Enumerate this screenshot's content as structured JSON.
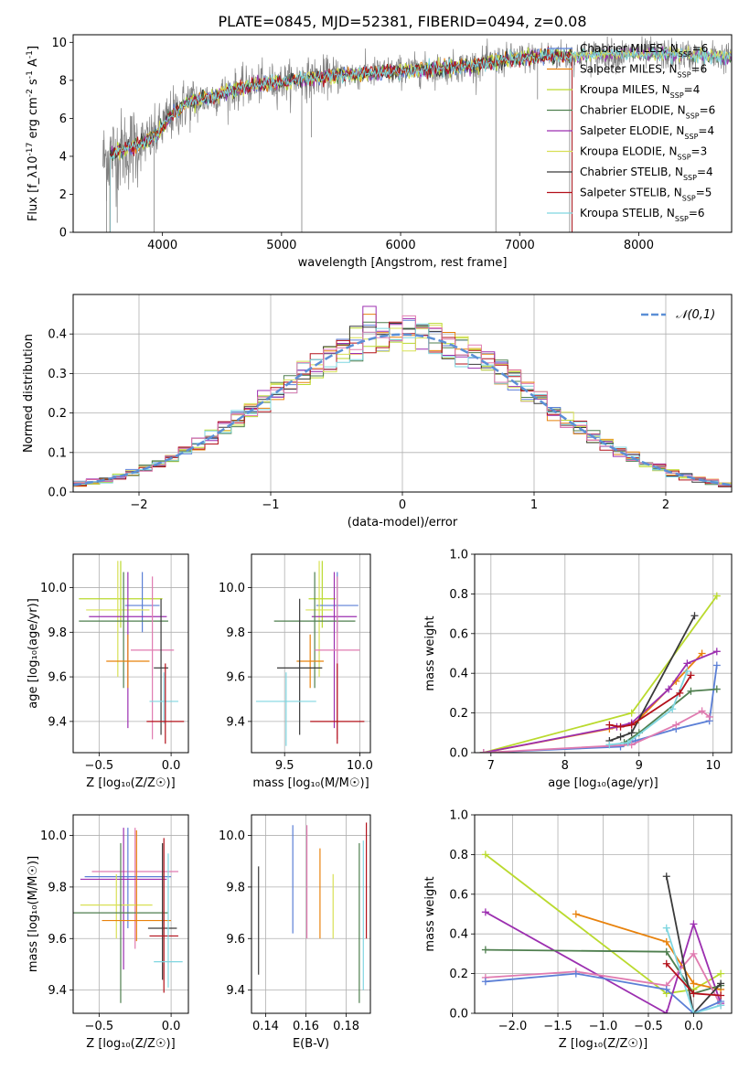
{
  "figure_title": "PLATE=0845, MJD=52381, FIBERID=0494, z=0.08",
  "colors": {
    "chab_miles": "#5b7fd6",
    "salp_miles": "#e8820c",
    "krou_miles": "#bada2e",
    "chab_elodie": "#4f7f4f",
    "salp_elodie": "#9c2fb0",
    "krou_elodie": "#d8e055",
    "chab_stelib": "#3a3a3a",
    "salp_stelib": "#b3101a",
    "krou_stelib": "#7fd6e0",
    "pink": "#e07bb0",
    "spectrum_grey": "#808080",
    "normal_curve": "#5b8fd6"
  },
  "chart_data": [
    {
      "id": "spectrum",
      "type": "line",
      "xlabel": "wavelength [Angstrom, rest frame]",
      "ylabel": "Flux [f_λ10^-17 erg cm^-2 s^-1 A^-1]",
      "xlim": [
        3250,
        8780
      ],
      "ylim": [
        0,
        10.4
      ],
      "xticks": [
        4000,
        5000,
        6000,
        7000,
        8000
      ],
      "yticks": [
        0,
        2,
        4,
        6,
        8,
        10
      ],
      "grid": false,
      "legend_position": "right",
      "legend": [
        {
          "label": "Chabrier MILES, N",
          "sub": "SSP",
          "value": "=6",
          "color_key": "chab_miles"
        },
        {
          "label": "Salpeter MILES, N",
          "sub": "SSP",
          "value": "=6",
          "color_key": "salp_miles"
        },
        {
          "label": "Kroupa MILES, N",
          "sub": "SSP",
          "value": "=4",
          "color_key": "krou_miles"
        },
        {
          "label": "Chabrier ELODIE, N",
          "sub": "SSP",
          "value": "=6",
          "color_key": "chab_elodie"
        },
        {
          "label": "Salpeter ELODIE, N",
          "sub": "SSP",
          "value": "=4",
          "color_key": "salp_elodie"
        },
        {
          "label": "Kroupa ELODIE, N",
          "sub": "SSP",
          "value": "=3",
          "color_key": "krou_elodie"
        },
        {
          "label": "Chabrier STELIB, N",
          "sub": "SSP",
          "value": "=4",
          "color_key": "chab_stelib"
        },
        {
          "label": "Salpeter STELIB, N",
          "sub": "SSP",
          "value": "=5",
          "color_key": "salp_stelib"
        },
        {
          "label": "Kroupa STELIB, N",
          "sub": "SSP",
          "value": "=6",
          "color_key": "krou_stelib"
        }
      ],
      "continuum": [
        [
          3500,
          3.8
        ],
        [
          3600,
          4.2
        ],
        [
          3800,
          4.6
        ],
        [
          3950,
          5.1
        ],
        [
          4050,
          6.0
        ],
        [
          4200,
          6.8
        ],
        [
          4400,
          7.1
        ],
        [
          4600,
          7.5
        ],
        [
          4800,
          7.8
        ],
        [
          5000,
          7.9
        ],
        [
          5200,
          8.1
        ],
        [
          5500,
          8.3
        ],
        [
          5800,
          8.4
        ],
        [
          6000,
          8.5
        ],
        [
          6300,
          8.6
        ],
        [
          6600,
          8.8
        ],
        [
          6900,
          9.1
        ],
        [
          7200,
          9.3
        ],
        [
          7500,
          9.3
        ],
        [
          8000,
          9.4
        ],
        [
          8500,
          9.3
        ],
        [
          8780,
          9.2
        ]
      ],
      "model_start": 3560,
      "models_end": [
        7440,
        7440,
        7440,
        8780,
        8780,
        8780,
        7440,
        7440,
        8780
      ],
      "spikes_down": [
        [
          3530,
          0
        ],
        [
          3560,
          0
        ],
        [
          3620,
          0.5
        ],
        [
          3700,
          3.0
        ],
        [
          3930,
          0
        ],
        [
          5170,
          0
        ],
        [
          5250,
          5.0
        ],
        [
          6800,
          0
        ],
        [
          7150,
          7.0
        ],
        [
          7420,
          0
        ]
      ]
    },
    {
      "id": "residual-histogram",
      "type": "line",
      "xlabel": "(data-model)/error",
      "ylabel": "Normed distribution",
      "xlim": [
        -2.5,
        2.5
      ],
      "ylim": [
        0,
        0.5
      ],
      "xticks": [
        -2,
        -1,
        0,
        1,
        2
      ],
      "yticks": [
        0.0,
        0.1,
        0.2,
        0.3,
        0.4
      ],
      "grid": true,
      "legend_position": "top-right",
      "legend": [
        {
          "label": "𝒩(0,1)",
          "color_key": "normal_curve"
        }
      ],
      "bin_width": 0.1,
      "reference_peak": 0.4,
      "reference_peaks": {
        "chab_elodie": 0.43,
        "salp_elodie": 0.47,
        "salp_miles": 0.45
      }
    },
    {
      "id": "age-vs-z",
      "type": "scatter",
      "xlabel": "Z [log₁₀(Z/Z☉)]",
      "ylabel": "age  [log₁₀(age/yr)]",
      "xlim": [
        -0.68,
        0.12
      ],
      "ylim": [
        9.26,
        10.15
      ],
      "xticks": [
        -0.5,
        0.0
      ],
      "yticks": [
        9.4,
        9.6,
        9.8,
        10.0
      ],
      "grid": true,
      "errorbars": [
        {
          "color_key": "krou_miles",
          "x": -0.35,
          "y": 9.95,
          "xerr": 0.29,
          "yerr": [
            0.13,
            0.17
          ]
        },
        {
          "color_key": "chab_miles",
          "x": -0.2,
          "y": 9.92,
          "xerr": 0.12,
          "yerr": [
            0.12,
            0.15
          ]
        },
        {
          "color_key": "krou_elodie",
          "x": -0.37,
          "y": 9.9,
          "xerr": 0.22,
          "yerr": [
            0.3,
            0.22
          ]
        },
        {
          "color_key": "salp_elodie",
          "x": -0.3,
          "y": 9.87,
          "xerr": 0.27,
          "yerr": [
            0.5,
            0.2
          ]
        },
        {
          "color_key": "chab_elodie",
          "x": -0.33,
          "y": 9.85,
          "xerr": 0.31,
          "yerr": [
            0.3,
            0.22
          ]
        },
        {
          "color_key": "pink",
          "x": -0.13,
          "y": 9.72,
          "xerr": 0.15,
          "yerr": [
            0.4,
            0.33
          ]
        },
        {
          "color_key": "salp_miles",
          "x": -0.3,
          "y": 9.67,
          "xerr": 0.15,
          "yerr": [
            0.12,
            0.12
          ]
        },
        {
          "color_key": "chab_stelib",
          "x": -0.07,
          "y": 9.64,
          "xerr": 0.05,
          "yerr": [
            0.3,
            0.31
          ]
        },
        {
          "color_key": "krou_stelib",
          "x": -0.05,
          "y": 9.49,
          "xerr": 0.1,
          "yerr": [
            0.1,
            0.13
          ]
        },
        {
          "color_key": "salp_stelib",
          "x": -0.04,
          "y": 9.4,
          "xerr": 0.13,
          "yerr": [
            0.1,
            0.26
          ]
        }
      ]
    },
    {
      "id": "age-vs-mass",
      "type": "scatter",
      "xlabel": "mass [log₁₀(M/M☉)]",
      "ylabel": "",
      "xlim": [
        9.28,
        10.07
      ],
      "ylim": [
        9.26,
        10.15
      ],
      "xticks": [
        9.5,
        10.0
      ],
      "yticks": [
        9.4,
        9.6,
        9.8,
        10.0
      ],
      "grid": true,
      "errorbars": [
        {
          "color_key": "krou_miles",
          "x": 9.75,
          "y": 9.95,
          "xerr": 0.09,
          "yerr": [
            0.13,
            0.17
          ]
        },
        {
          "color_key": "chab_miles",
          "x": 9.85,
          "y": 9.92,
          "xerr": 0.14,
          "yerr": [
            0.12,
            0.15
          ]
        },
        {
          "color_key": "krou_elodie",
          "x": 9.73,
          "y": 9.9,
          "xerr": 0.09,
          "yerr": [
            0.3,
            0.22
          ]
        },
        {
          "color_key": "salp_elodie",
          "x": 9.83,
          "y": 9.87,
          "xerr": 0.15,
          "yerr": [
            0.5,
            0.2
          ]
        },
        {
          "color_key": "chab_elodie",
          "x": 9.7,
          "y": 9.85,
          "xerr": 0.27,
          "yerr": [
            0.3,
            0.22
          ]
        },
        {
          "color_key": "pink",
          "x": 9.85,
          "y": 9.72,
          "xerr": 0.15,
          "yerr": [
            0.4,
            0.33
          ]
        },
        {
          "color_key": "salp_miles",
          "x": 9.67,
          "y": 9.67,
          "xerr": 0.09,
          "yerr": [
            0.12,
            0.12
          ]
        },
        {
          "color_key": "chab_stelib",
          "x": 9.6,
          "y": 9.64,
          "xerr": 0.15,
          "yerr": [
            0.3,
            0.31
          ]
        },
        {
          "color_key": "krou_stelib",
          "x": 9.51,
          "y": 9.49,
          "xerr": 0.2,
          "yerr": [
            0.2,
            0.13
          ]
        },
        {
          "color_key": "salp_stelib",
          "x": 9.85,
          "y": 9.4,
          "xerr": 0.18,
          "yerr": [
            0.1,
            0.26
          ]
        }
      ]
    },
    {
      "id": "mass-weight-vs-age",
      "type": "line",
      "xlabel": "age  [log₁₀(age/yr)]",
      "ylabel": "mass weight",
      "xlim": [
        6.78,
        10.25
      ],
      "ylim": [
        0,
        1
      ],
      "xticks": [
        7,
        8,
        9,
        10
      ],
      "yticks": [
        0.0,
        0.2,
        0.4,
        0.6,
        0.8,
        1.0
      ],
      "grid": true,
      "series": [
        {
          "color_key": "krou_miles",
          "x": [
            6.9,
            8.9,
            10.05
          ],
          "y": [
            0.0,
            0.2,
            0.79
          ]
        },
        {
          "color_key": "salp_miles",
          "x": [
            6.9,
            8.6,
            8.95,
            9.5,
            9.85
          ],
          "y": [
            0.0,
            0.12,
            0.15,
            0.36,
            0.5
          ]
        },
        {
          "color_key": "salp_elodie",
          "x": [
            6.9,
            8.7,
            8.9,
            9.4,
            9.65,
            10.05
          ],
          "y": [
            0.0,
            0.13,
            0.15,
            0.32,
            0.45,
            0.51
          ]
        },
        {
          "color_key": "chab_stelib",
          "x": [
            8.6,
            8.75,
            8.9,
            9.75
          ],
          "y": [
            0.06,
            0.08,
            0.1,
            0.69
          ]
        },
        {
          "color_key": "chab_miles",
          "x": [
            6.9,
            8.75,
            8.95,
            9.5,
            9.95,
            10.05
          ],
          "y": [
            0.0,
            0.03,
            0.06,
            0.12,
            0.16,
            0.44
          ]
        },
        {
          "color_key": "chab_elodie",
          "x": [
            8.8,
            9.0,
            9.7,
            10.05
          ],
          "y": [
            0.05,
            0.1,
            0.31,
            0.32
          ]
        },
        {
          "color_key": "pink",
          "x": [
            6.9,
            8.9,
            9.5,
            9.85,
            9.95
          ],
          "y": [
            0.0,
            0.04,
            0.14,
            0.21,
            0.18
          ]
        },
        {
          "color_key": "krou_stelib",
          "x": [
            8.6,
            8.85,
            9.45,
            9.65
          ],
          "y": [
            0.04,
            0.05,
            0.22,
            0.41
          ]
        },
        {
          "color_key": "salp_stelib",
          "x": [
            8.6,
            8.75,
            8.9,
            9.55,
            9.7
          ],
          "y": [
            0.14,
            0.13,
            0.14,
            0.3,
            0.39
          ]
        }
      ]
    },
    {
      "id": "mass-vs-z",
      "type": "scatter",
      "xlabel": "Z [log₁₀(Z/Z☉)]",
      "ylabel": "mass [log₁₀(M/M☉)]",
      "xlim": [
        -0.68,
        0.12
      ],
      "ylim": [
        9.31,
        10.08
      ],
      "xticks": [
        -0.5,
        0.0
      ],
      "yticks": [
        9.4,
        9.6,
        9.8,
        10.0
      ],
      "grid": true,
      "errorbars": [
        {
          "color_key": "pink",
          "x": -0.25,
          "y": 9.86,
          "xerr": 0.3,
          "yerr": [
            0.3,
            0.17
          ]
        },
        {
          "color_key": "chab_miles",
          "x": -0.3,
          "y": 9.84,
          "xerr": 0.3,
          "yerr": [
            0.2,
            0.19
          ]
        },
        {
          "color_key": "salp_elodie",
          "x": -0.33,
          "y": 9.83,
          "xerr": 0.3,
          "yerr": [
            0.35,
            0.2
          ]
        },
        {
          "color_key": "krou_elodie",
          "x": -0.38,
          "y": 9.73,
          "xerr": 0.25,
          "yerr": [
            0.13,
            0.12
          ]
        },
        {
          "color_key": "chab_elodie",
          "x": -0.35,
          "y": 9.7,
          "xerr": 0.33,
          "yerr": [
            0.35,
            0.27
          ]
        },
        {
          "color_key": "salp_miles",
          "x": -0.24,
          "y": 9.67,
          "xerr": 0.24,
          "yerr": [
            0.08,
            0.35
          ]
        },
        {
          "color_key": "chab_stelib",
          "x": -0.06,
          "y": 9.64,
          "xerr": 0.1,
          "yerr": [
            0.2,
            0.33
          ]
        },
        {
          "color_key": "salp_stelib",
          "x": -0.05,
          "y": 9.61,
          "xerr": 0.1,
          "yerr": [
            0.22,
            0.38
          ]
        },
        {
          "color_key": "krou_stelib",
          "x": -0.02,
          "y": 9.51,
          "xerr": 0.1,
          "yerr": [
            0.1,
            0.42
          ]
        }
      ]
    },
    {
      "id": "mass-vs-ebv",
      "type": "scatter",
      "xlabel": "E(B-V)",
      "ylabel": "",
      "xlim": [
        0.133,
        0.192
      ],
      "ylim": [
        9.31,
        10.08
      ],
      "xticks": [
        0.14,
        0.16,
        0.18
      ],
      "yticks": [
        9.4,
        9.6,
        9.8,
        10.0
      ],
      "grid": true,
      "errorbars": [
        {
          "color_key": "chab_stelib",
          "x": 0.1365,
          "y0": 9.46,
          "y1": 9.88
        },
        {
          "color_key": "chab_miles",
          "x": 0.1535,
          "y0": 9.62,
          "y1": 10.04
        },
        {
          "color_key": "pink",
          "x": 0.1605,
          "y0": 9.6,
          "y1": 10.04
        },
        {
          "color_key": "salp_miles",
          "x": 0.167,
          "y0": 9.6,
          "y1": 9.95
        },
        {
          "color_key": "krou_elodie",
          "x": 0.1735,
          "y0": 9.6,
          "y1": 9.85
        },
        {
          "color_key": "chab_elodie",
          "x": 0.1865,
          "y0": 9.35,
          "y1": 9.97
        },
        {
          "color_key": "krou_stelib",
          "x": 0.1885,
          "y0": 9.4,
          "y1": 9.98
        },
        {
          "color_key": "salp_stelib",
          "x": 0.19,
          "y0": 9.6,
          "y1": 10.05
        }
      ]
    },
    {
      "id": "mass-weight-vs-z",
      "type": "line",
      "xlabel": "Z [log₁₀(Z/Z☉)]",
      "ylabel": "mass weight",
      "xlim": [
        -2.42,
        0.42
      ],
      "ylim": [
        0,
        1
      ],
      "xticks": [
        -2.0,
        -1.5,
        -1.0,
        -0.5,
        0.0
      ],
      "yticks": [
        0.0,
        0.2,
        0.4,
        0.6,
        0.8,
        1.0
      ],
      "grid": true,
      "series": [
        {
          "color_key": "krou_miles",
          "x": [
            -2.3,
            -0.3,
            0.0,
            0.3
          ],
          "y": [
            0.8,
            0.1,
            0.12,
            0.2
          ]
        },
        {
          "color_key": "salp_elodie",
          "x": [
            -2.3,
            -0.3,
            0.0,
            0.3
          ],
          "y": [
            0.51,
            0.0,
            0.45,
            0.05
          ]
        },
        {
          "color_key": "salp_miles",
          "x": [
            -1.3,
            -0.3,
            0.0,
            0.3
          ],
          "y": [
            0.5,
            0.36,
            0.15,
            0.12
          ]
        },
        {
          "color_key": "chab_elodie",
          "x": [
            -2.3,
            -0.3,
            0.0,
            0.3
          ],
          "y": [
            0.32,
            0.31,
            0.1,
            0.14
          ]
        },
        {
          "color_key": "pink",
          "x": [
            -2.3,
            -1.3,
            -0.3,
            0.0,
            0.3
          ],
          "y": [
            0.18,
            0.21,
            0.14,
            0.3,
            0.04
          ]
        },
        {
          "color_key": "chab_miles",
          "x": [
            -2.3,
            -1.3,
            -0.3,
            0.0,
            0.3
          ],
          "y": [
            0.16,
            0.2,
            0.12,
            0.0,
            0.06
          ]
        },
        {
          "color_key": "chab_stelib",
          "x": [
            -0.3,
            0.0,
            0.3
          ],
          "y": [
            0.69,
            0.0,
            0.15
          ]
        },
        {
          "color_key": "krou_stelib",
          "x": [
            -0.3,
            0.0,
            0.3
          ],
          "y": [
            0.43,
            0.0,
            0.04
          ]
        },
        {
          "color_key": "salp_stelib",
          "x": [
            -0.3,
            0.0,
            0.3
          ],
          "y": [
            0.25,
            0.1,
            0.09
          ]
        }
      ]
    }
  ]
}
